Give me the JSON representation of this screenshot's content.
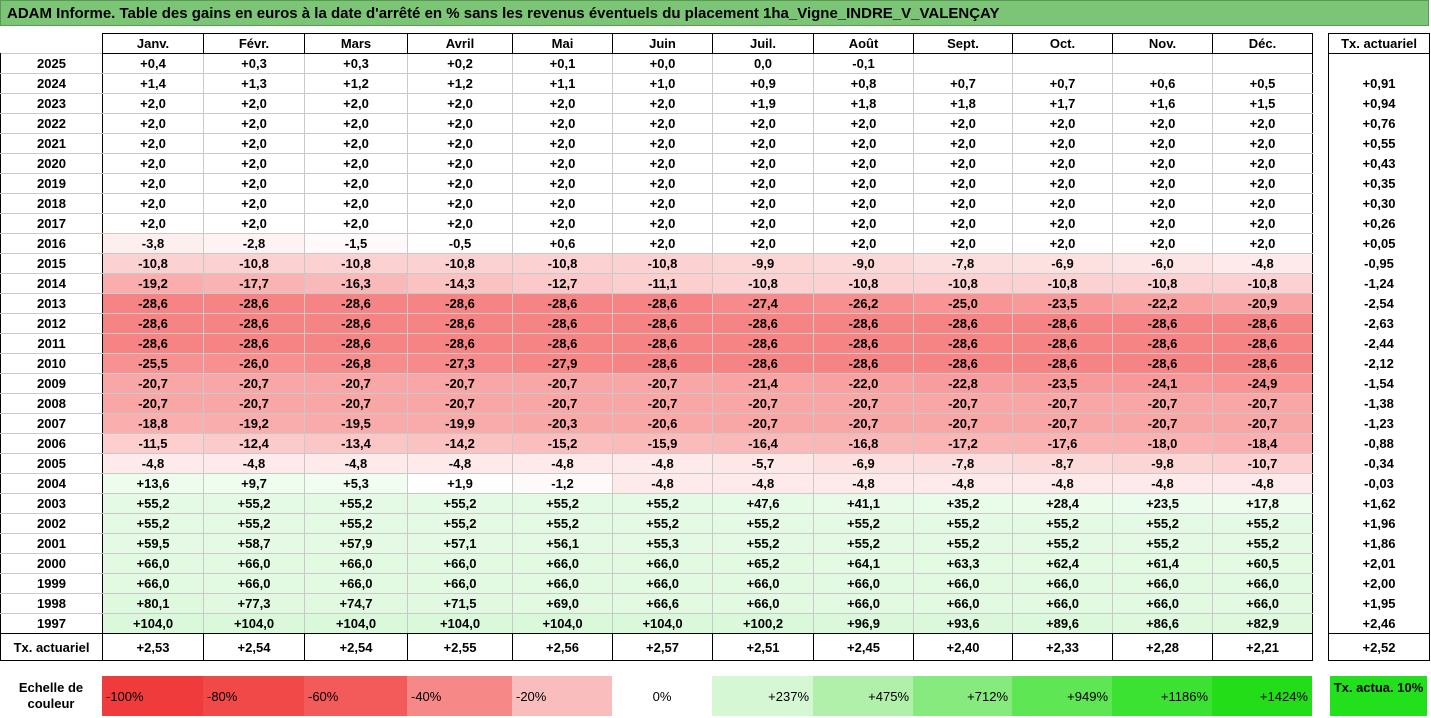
{
  "title": "ADAM Informe. Table des gains en euros à la date d'arrêté en % sans les revenus éventuels du placement 1ha_Vigne_INDRE_V_VALENÇAY",
  "months": [
    "Janv.",
    "Févr.",
    "Mars",
    "Avril",
    "Mai",
    "Juin",
    "Juil.",
    "Août",
    "Sept.",
    "Oct.",
    "Nov.",
    "Déc."
  ],
  "side_header": "Tx. actuariel",
  "footer_label": "Tx. actuariel",
  "rows": [
    {
      "year": "2025",
      "vals": [
        "+0,4",
        "+0,3",
        "+0,3",
        "+0,2",
        "+0,1",
        "+0,0",
        "0,0",
        "-0,1",
        "",
        "",
        "",
        ""
      ],
      "tx": ""
    },
    {
      "year": "2024",
      "vals": [
        "+1,4",
        "+1,3",
        "+1,2",
        "+1,2",
        "+1,1",
        "+1,0",
        "+0,9",
        "+0,8",
        "+0,7",
        "+0,7",
        "+0,6",
        "+0,5"
      ],
      "tx": "+0,91"
    },
    {
      "year": "2023",
      "vals": [
        "+2,0",
        "+2,0",
        "+2,0",
        "+2,0",
        "+2,0",
        "+2,0",
        "+1,9",
        "+1,8",
        "+1,8",
        "+1,7",
        "+1,6",
        "+1,5"
      ],
      "tx": "+0,94"
    },
    {
      "year": "2022",
      "vals": [
        "+2,0",
        "+2,0",
        "+2,0",
        "+2,0",
        "+2,0",
        "+2,0",
        "+2,0",
        "+2,0",
        "+2,0",
        "+2,0",
        "+2,0",
        "+2,0"
      ],
      "tx": "+0,76"
    },
    {
      "year": "2021",
      "vals": [
        "+2,0",
        "+2,0",
        "+2,0",
        "+2,0",
        "+2,0",
        "+2,0",
        "+2,0",
        "+2,0",
        "+2,0",
        "+2,0",
        "+2,0",
        "+2,0"
      ],
      "tx": "+0,55"
    },
    {
      "year": "2020",
      "vals": [
        "+2,0",
        "+2,0",
        "+2,0",
        "+2,0",
        "+2,0",
        "+2,0",
        "+2,0",
        "+2,0",
        "+2,0",
        "+2,0",
        "+2,0",
        "+2,0"
      ],
      "tx": "+0,43"
    },
    {
      "year": "2019",
      "vals": [
        "+2,0",
        "+2,0",
        "+2,0",
        "+2,0",
        "+2,0",
        "+2,0",
        "+2,0",
        "+2,0",
        "+2,0",
        "+2,0",
        "+2,0",
        "+2,0"
      ],
      "tx": "+0,35"
    },
    {
      "year": "2018",
      "vals": [
        "+2,0",
        "+2,0",
        "+2,0",
        "+2,0",
        "+2,0",
        "+2,0",
        "+2,0",
        "+2,0",
        "+2,0",
        "+2,0",
        "+2,0",
        "+2,0"
      ],
      "tx": "+0,30"
    },
    {
      "year": "2017",
      "vals": [
        "+2,0",
        "+2,0",
        "+2,0",
        "+2,0",
        "+2,0",
        "+2,0",
        "+2,0",
        "+2,0",
        "+2,0",
        "+2,0",
        "+2,0",
        "+2,0"
      ],
      "tx": "+0,26"
    },
    {
      "year": "2016",
      "vals": [
        "-3,8",
        "-2,8",
        "-1,5",
        "-0,5",
        "+0,6",
        "+2,0",
        "+2,0",
        "+2,0",
        "+2,0",
        "+2,0",
        "+2,0",
        "+2,0"
      ],
      "tx": "+0,05"
    },
    {
      "year": "2015",
      "vals": [
        "-10,8",
        "-10,8",
        "-10,8",
        "-10,8",
        "-10,8",
        "-10,8",
        "-9,9",
        "-9,0",
        "-7,8",
        "-6,9",
        "-6,0",
        "-4,8"
      ],
      "tx": "-0,95"
    },
    {
      "year": "2014",
      "vals": [
        "-19,2",
        "-17,7",
        "-16,3",
        "-14,3",
        "-12,7",
        "-11,1",
        "-10,8",
        "-10,8",
        "-10,8",
        "-10,8",
        "-10,8",
        "-10,8"
      ],
      "tx": "-1,24"
    },
    {
      "year": "2013",
      "vals": [
        "-28,6",
        "-28,6",
        "-28,6",
        "-28,6",
        "-28,6",
        "-28,6",
        "-27,4",
        "-26,2",
        "-25,0",
        "-23,5",
        "-22,2",
        "-20,9"
      ],
      "tx": "-2,54"
    },
    {
      "year": "2012",
      "vals": [
        "-28,6",
        "-28,6",
        "-28,6",
        "-28,6",
        "-28,6",
        "-28,6",
        "-28,6",
        "-28,6",
        "-28,6",
        "-28,6",
        "-28,6",
        "-28,6"
      ],
      "tx": "-2,63"
    },
    {
      "year": "2011",
      "vals": [
        "-28,6",
        "-28,6",
        "-28,6",
        "-28,6",
        "-28,6",
        "-28,6",
        "-28,6",
        "-28,6",
        "-28,6",
        "-28,6",
        "-28,6",
        "-28,6"
      ],
      "tx": "-2,44"
    },
    {
      "year": "2010",
      "vals": [
        "-25,5",
        "-26,0",
        "-26,8",
        "-27,3",
        "-27,9",
        "-28,6",
        "-28,6",
        "-28,6",
        "-28,6",
        "-28,6",
        "-28,6",
        "-28,6"
      ],
      "tx": "-2,12"
    },
    {
      "year": "2009",
      "vals": [
        "-20,7",
        "-20,7",
        "-20,7",
        "-20,7",
        "-20,7",
        "-20,7",
        "-21,4",
        "-22,0",
        "-22,8",
        "-23,5",
        "-24,1",
        "-24,9"
      ],
      "tx": "-1,54"
    },
    {
      "year": "2008",
      "vals": [
        "-20,7",
        "-20,7",
        "-20,7",
        "-20,7",
        "-20,7",
        "-20,7",
        "-20,7",
        "-20,7",
        "-20,7",
        "-20,7",
        "-20,7",
        "-20,7"
      ],
      "tx": "-1,38"
    },
    {
      "year": "2007",
      "vals": [
        "-18,8",
        "-19,2",
        "-19,5",
        "-19,9",
        "-20,3",
        "-20,6",
        "-20,7",
        "-20,7",
        "-20,7",
        "-20,7",
        "-20,7",
        "-20,7"
      ],
      "tx": "-1,23"
    },
    {
      "year": "2006",
      "vals": [
        "-11,5",
        "-12,4",
        "-13,4",
        "-14,2",
        "-15,2",
        "-15,9",
        "-16,4",
        "-16,8",
        "-17,2",
        "-17,6",
        "-18,0",
        "-18,4"
      ],
      "tx": "-0,88"
    },
    {
      "year": "2005",
      "vals": [
        "-4,8",
        "-4,8",
        "-4,8",
        "-4,8",
        "-4,8",
        "-4,8",
        "-5,7",
        "-6,9",
        "-7,8",
        "-8,7",
        "-9,8",
        "-10,7"
      ],
      "tx": "-0,34"
    },
    {
      "year": "2004",
      "vals": [
        "+13,6",
        "+9,7",
        "+5,3",
        "+1,9",
        "-1,2",
        "-4,8",
        "-4,8",
        "-4,8",
        "-4,8",
        "-4,8",
        "-4,8",
        "-4,8"
      ],
      "tx": "-0,03"
    },
    {
      "year": "2003",
      "vals": [
        "+55,2",
        "+55,2",
        "+55,2",
        "+55,2",
        "+55,2",
        "+55,2",
        "+47,6",
        "+41,1",
        "+35,2",
        "+28,4",
        "+23,5",
        "+17,8"
      ],
      "tx": "+1,62"
    },
    {
      "year": "2002",
      "vals": [
        "+55,2",
        "+55,2",
        "+55,2",
        "+55,2",
        "+55,2",
        "+55,2",
        "+55,2",
        "+55,2",
        "+55,2",
        "+55,2",
        "+55,2",
        "+55,2"
      ],
      "tx": "+1,96"
    },
    {
      "year": "2001",
      "vals": [
        "+59,5",
        "+58,7",
        "+57,9",
        "+57,1",
        "+56,1",
        "+55,3",
        "+55,2",
        "+55,2",
        "+55,2",
        "+55,2",
        "+55,2",
        "+55,2"
      ],
      "tx": "+1,86"
    },
    {
      "year": "2000",
      "vals": [
        "+66,0",
        "+66,0",
        "+66,0",
        "+66,0",
        "+66,0",
        "+66,0",
        "+65,2",
        "+64,1",
        "+63,3",
        "+62,4",
        "+61,4",
        "+60,5"
      ],
      "tx": "+2,01"
    },
    {
      "year": "1999",
      "vals": [
        "+66,0",
        "+66,0",
        "+66,0",
        "+66,0",
        "+66,0",
        "+66,0",
        "+66,0",
        "+66,0",
        "+66,0",
        "+66,0",
        "+66,0",
        "+66,0"
      ],
      "tx": "+2,00"
    },
    {
      "year": "1998",
      "vals": [
        "+80,1",
        "+77,3",
        "+74,7",
        "+71,5",
        "+69,0",
        "+66,6",
        "+66,0",
        "+66,0",
        "+66,0",
        "+66,0",
        "+66,0",
        "+66,0"
      ],
      "tx": "+1,95"
    },
    {
      "year": "1997",
      "vals": [
        "+104,0",
        "+104,0",
        "+104,0",
        "+104,0",
        "+104,0",
        "+104,0",
        "+100,2",
        "+96,9",
        "+93,6",
        "+89,6",
        "+86,6",
        "+82,9"
      ],
      "tx": "+2,46"
    }
  ],
  "footer": [
    "+2,53",
    "+2,54",
    "+2,54",
    "+2,55",
    "+2,56",
    "+2,57",
    "+2,51",
    "+2,45",
    "+2,40",
    "+2,33",
    "+2,28",
    "+2,21"
  ],
  "footer_tx": "+2,52",
  "scale": {
    "label": "Echelle de couleur",
    "items": [
      {
        "text": "-100%",
        "color": "#ef3b3b",
        "align": "neg"
      },
      {
        "text": "-80%",
        "color": "#f14848",
        "align": "neg"
      },
      {
        "text": "-60%",
        "color": "#f35a5a",
        "align": "neg"
      },
      {
        "text": "-40%",
        "color": "#f68888",
        "align": "neg"
      },
      {
        "text": "-20%",
        "color": "#f9bdbd",
        "align": "neg"
      },
      {
        "text": "0%",
        "color": "#ffffff",
        "align": "mid"
      },
      {
        "text": "+237%",
        "color": "#d6f7d4",
        "align": "pos"
      },
      {
        "text": "+475%",
        "color": "#b0f0ab",
        "align": "pos"
      },
      {
        "text": "+712%",
        "color": "#86ea7f",
        "align": "pos"
      },
      {
        "text": "+949%",
        "color": "#5ee655",
        "align": "pos"
      },
      {
        "text": "+1186%",
        "color": "#3be231",
        "align": "pos"
      },
      {
        "text": "+1424%",
        "color": "#22dd18",
        "align": "pos"
      }
    ],
    "side_key": "Tx. actua. 10%"
  },
  "colors": {
    "title_bg": "#7cc576",
    "side_key_bg": "#22e01c"
  }
}
